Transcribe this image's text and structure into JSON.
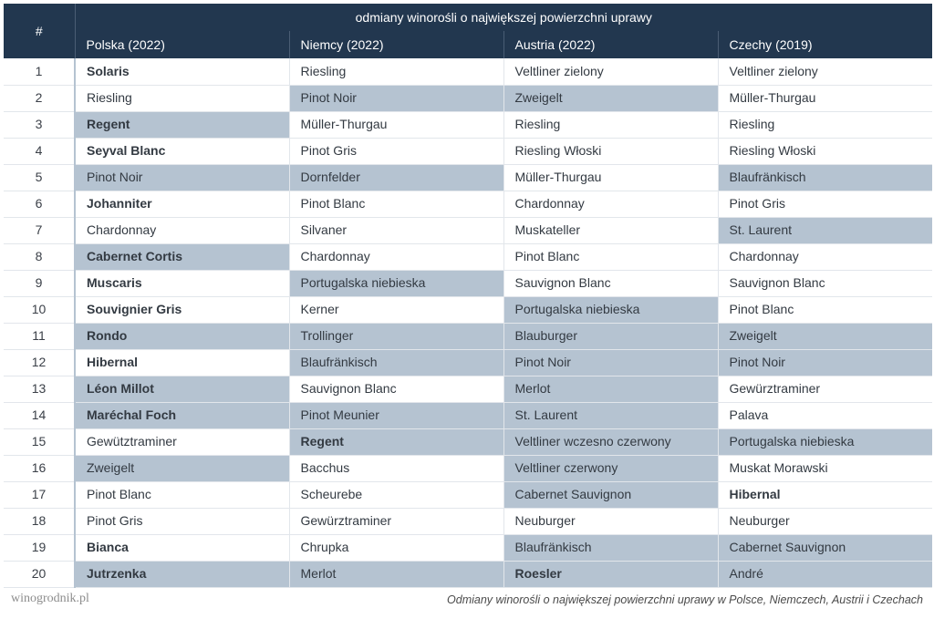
{
  "colors": {
    "header_bg": "#22374f",
    "header_fg": "#ffffff",
    "shade": "#b5c3d1",
    "text": "#333a42"
  },
  "header": {
    "rank_symbol": "#",
    "title": "odmiany winorośli o największej powierzchni uprawy",
    "columns": [
      "Polska (2022)",
      "Niemcy (2022)",
      "Austria (2022)",
      "Czechy (2019)"
    ]
  },
  "rows": [
    {
      "n": "1",
      "c": [
        {
          "t": "Solaris",
          "b": true,
          "s": false
        },
        {
          "t": "Riesling",
          "b": false,
          "s": false
        },
        {
          "t": "Veltliner zielony",
          "b": false,
          "s": false
        },
        {
          "t": "Veltliner zielony",
          "b": false,
          "s": false
        }
      ]
    },
    {
      "n": "2",
      "c": [
        {
          "t": "Riesling",
          "b": false,
          "s": false
        },
        {
          "t": "Pinot Noir",
          "b": false,
          "s": true
        },
        {
          "t": "Zweigelt",
          "b": false,
          "s": true
        },
        {
          "t": "Müller-Thurgau",
          "b": false,
          "s": false
        }
      ]
    },
    {
      "n": "3",
      "c": [
        {
          "t": "Regent",
          "b": true,
          "s": true
        },
        {
          "t": "Müller-Thurgau",
          "b": false,
          "s": false
        },
        {
          "t": "Riesling",
          "b": false,
          "s": false
        },
        {
          "t": "Riesling",
          "b": false,
          "s": false
        }
      ]
    },
    {
      "n": "4",
      "c": [
        {
          "t": "Seyval Blanc",
          "b": true,
          "s": false
        },
        {
          "t": "Pinot Gris",
          "b": false,
          "s": false
        },
        {
          "t": "Riesling Włoski",
          "b": false,
          "s": false
        },
        {
          "t": "Riesling Włoski",
          "b": false,
          "s": false
        }
      ]
    },
    {
      "n": "5",
      "c": [
        {
          "t": "Pinot Noir",
          "b": false,
          "s": true
        },
        {
          "t": "Dornfelder",
          "b": false,
          "s": true
        },
        {
          "t": "Müller-Thurgau",
          "b": false,
          "s": false
        },
        {
          "t": "Blaufränkisch",
          "b": false,
          "s": true
        }
      ]
    },
    {
      "n": "6",
      "c": [
        {
          "t": "Johanniter",
          "b": true,
          "s": false
        },
        {
          "t": "Pinot Blanc",
          "b": false,
          "s": false
        },
        {
          "t": "Chardonnay",
          "b": false,
          "s": false
        },
        {
          "t": "Pinot Gris",
          "b": false,
          "s": false
        }
      ]
    },
    {
      "n": "7",
      "c": [
        {
          "t": "Chardonnay",
          "b": false,
          "s": false
        },
        {
          "t": "Silvaner",
          "b": false,
          "s": false
        },
        {
          "t": "Muskateller",
          "b": false,
          "s": false
        },
        {
          "t": "St. Laurent",
          "b": false,
          "s": true
        }
      ]
    },
    {
      "n": "8",
      "c": [
        {
          "t": "Cabernet Cortis",
          "b": true,
          "s": true
        },
        {
          "t": "Chardonnay",
          "b": false,
          "s": false
        },
        {
          "t": "Pinot Blanc",
          "b": false,
          "s": false
        },
        {
          "t": "Chardonnay",
          "b": false,
          "s": false
        }
      ]
    },
    {
      "n": "9",
      "c": [
        {
          "t": "Muscaris",
          "b": true,
          "s": false
        },
        {
          "t": "Portugalska niebieska",
          "b": false,
          "s": true
        },
        {
          "t": "Sauvignon Blanc",
          "b": false,
          "s": false
        },
        {
          "t": "Sauvignon Blanc",
          "b": false,
          "s": false
        }
      ]
    },
    {
      "n": "10",
      "c": [
        {
          "t": "Souvignier Gris",
          "b": true,
          "s": false
        },
        {
          "t": "Kerner",
          "b": false,
          "s": false
        },
        {
          "t": "Portugalska niebieska",
          "b": false,
          "s": true
        },
        {
          "t": "Pinot Blanc",
          "b": false,
          "s": false
        }
      ]
    },
    {
      "n": "11",
      "c": [
        {
          "t": "Rondo",
          "b": true,
          "s": true
        },
        {
          "t": "Trollinger",
          "b": false,
          "s": true
        },
        {
          "t": "Blauburger",
          "b": false,
          "s": true
        },
        {
          "t": "Zweigelt",
          "b": false,
          "s": true
        }
      ]
    },
    {
      "n": "12",
      "c": [
        {
          "t": "Hibernal",
          "b": true,
          "s": false
        },
        {
          "t": "Blaufränkisch",
          "b": false,
          "s": true
        },
        {
          "t": "Pinot Noir",
          "b": false,
          "s": true
        },
        {
          "t": "Pinot Noir",
          "b": false,
          "s": true
        }
      ]
    },
    {
      "n": "13",
      "c": [
        {
          "t": "Léon Millot",
          "b": true,
          "s": true
        },
        {
          "t": "Sauvignon Blanc",
          "b": false,
          "s": false
        },
        {
          "t": "Merlot",
          "b": false,
          "s": true
        },
        {
          "t": "Gewürztraminer",
          "b": false,
          "s": false
        }
      ]
    },
    {
      "n": "14",
      "c": [
        {
          "t": "Maréchal Foch",
          "b": true,
          "s": true
        },
        {
          "t": "Pinot Meunier",
          "b": false,
          "s": true
        },
        {
          "t": "St. Laurent",
          "b": false,
          "s": true
        },
        {
          "t": "Palava",
          "b": false,
          "s": false
        }
      ]
    },
    {
      "n": "15",
      "c": [
        {
          "t": "Gewütztraminer",
          "b": false,
          "s": false
        },
        {
          "t": "Regent",
          "b": true,
          "s": true
        },
        {
          "t": "Veltliner wczesno czerwony",
          "b": false,
          "s": true
        },
        {
          "t": "Portugalska niebieska",
          "b": false,
          "s": true
        }
      ]
    },
    {
      "n": "16",
      "c": [
        {
          "t": "Zweigelt",
          "b": false,
          "s": true
        },
        {
          "t": "Bacchus",
          "b": false,
          "s": false
        },
        {
          "t": "Veltliner czerwony",
          "b": false,
          "s": true
        },
        {
          "t": "Muskat Morawski",
          "b": false,
          "s": false
        }
      ]
    },
    {
      "n": "17",
      "c": [
        {
          "t": "Pinot Blanc",
          "b": false,
          "s": false
        },
        {
          "t": "Scheurebe",
          "b": false,
          "s": false
        },
        {
          "t": "Cabernet Sauvignon",
          "b": false,
          "s": true
        },
        {
          "t": "Hibernal",
          "b": true,
          "s": false
        }
      ]
    },
    {
      "n": "18",
      "c": [
        {
          "t": "Pinot Gris",
          "b": false,
          "s": false
        },
        {
          "t": "Gewürztraminer",
          "b": false,
          "s": false
        },
        {
          "t": "Neuburger",
          "b": false,
          "s": false
        },
        {
          "t": "Neuburger",
          "b": false,
          "s": false
        }
      ]
    },
    {
      "n": "19",
      "c": [
        {
          "t": "Bianca",
          "b": true,
          "s": false
        },
        {
          "t": "Chrupka",
          "b": false,
          "s": false
        },
        {
          "t": "Blaufränkisch",
          "b": false,
          "s": true
        },
        {
          "t": "Cabernet Sauvignon",
          "b": false,
          "s": true
        }
      ]
    },
    {
      "n": "20",
      "c": [
        {
          "t": "Jutrzenka",
          "b": true,
          "s": true
        },
        {
          "t": "Merlot",
          "b": false,
          "s": true
        },
        {
          "t": "Roesler",
          "b": true,
          "s": true
        },
        {
          "t": "André",
          "b": false,
          "s": true
        }
      ]
    }
  ],
  "footer": {
    "site": "winogrodnik.pl",
    "caption": "Odmiany winorośli o największej powierzchni uprawy w Polsce, Niemczech, Austrii i Czechach"
  }
}
